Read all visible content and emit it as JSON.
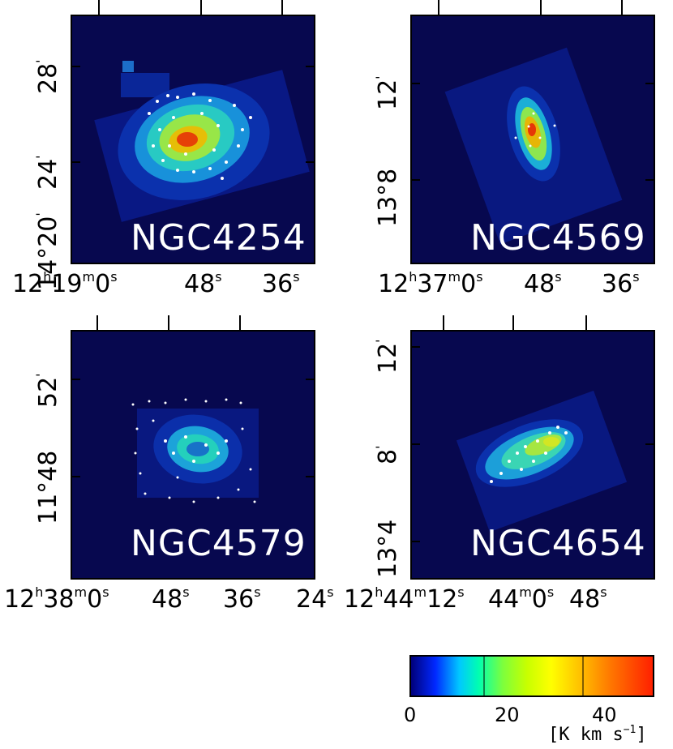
{
  "panels": [
    {
      "name": "NGC4254",
      "y_ticks": [
        "28",
        "24",
        "20"
      ],
      "y_unit": "'",
      "y_lead": "14°",
      "x_ticks": [
        "12h19m0s",
        "48s",
        "36s"
      ],
      "x_labels": {
        "lead": "12",
        "h": "h",
        "mid": "19",
        "m": "m",
        "sec0": "0",
        "s": "s",
        "t2": "48",
        "t3": "36"
      }
    },
    {
      "name": "NGC4569",
      "y_ticks": [
        "12",
        "8"
      ],
      "y_unit": "'",
      "y_lead": "13°",
      "x_labels": {
        "lead": "12",
        "h": "h",
        "mid": "37",
        "m": "m",
        "sec0": "0",
        "s": "s",
        "t2": "48",
        "t3": "36"
      }
    },
    {
      "name": "NGC4579",
      "y_ticks": [
        "52",
        "48"
      ],
      "y_unit": "'",
      "y_lead": "11°",
      "x_labels": {
        "lead": "12",
        "h": "h",
        "mid": "38",
        "m": "m",
        "sec0": "0",
        "s": "s",
        "t2": "48",
        "t3": "36",
        "t4": "24"
      }
    },
    {
      "name": "NGC4654",
      "y_ticks": [
        "12",
        "8",
        "4"
      ],
      "y_unit": "'",
      "y_lead": "13°",
      "x_labels": {
        "lead": "12",
        "h": "h",
        "mid": "44",
        "m": "m",
        "sec0": "12",
        "s": "s",
        "t2": "0",
        "t3": "48",
        "mid2": "44"
      }
    }
  ],
  "colorbar": {
    "ticks": [
      "0",
      "20",
      "40"
    ],
    "unit_label": "[K km s",
    "unit_exp": "−1",
    "unit_close": "]",
    "min": 0,
    "max": 50,
    "colors": [
      "#00007a",
      "#0028ff",
      "#00c8ff",
      "#00ffb0",
      "#7dff3c",
      "#ffff00",
      "#ff7a00",
      "#ff2000"
    ]
  }
}
